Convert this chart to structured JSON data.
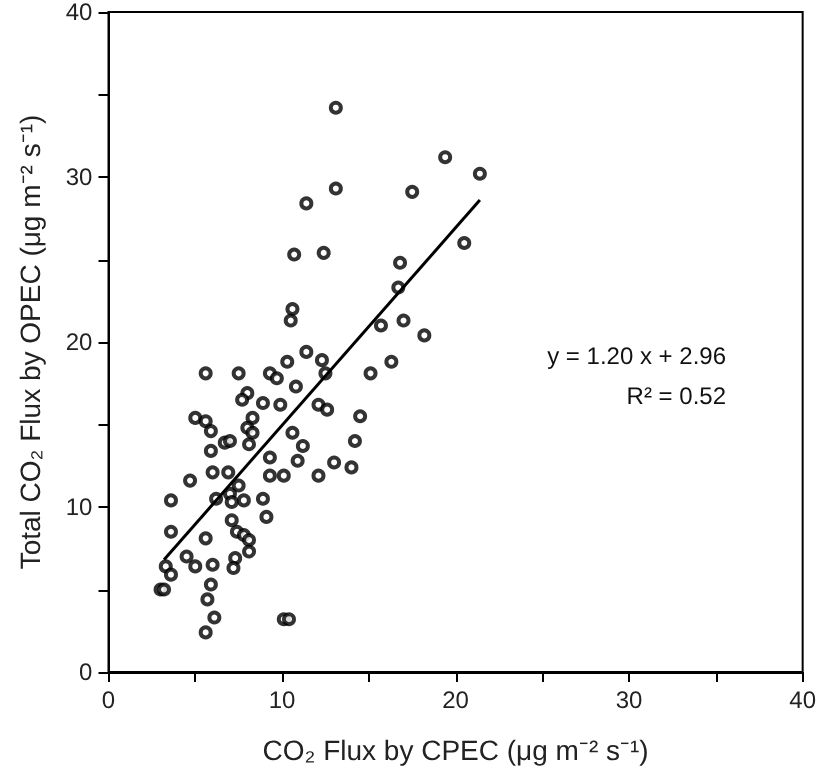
{
  "chart_data": {
    "type": "scatter",
    "xlabel": "CO₂ Flux by CPEC (μg m⁻² s⁻¹)",
    "ylabel": "Total CO₂ Flux by OPEC (μg m⁻² s⁻¹)",
    "xlim": [
      0,
      40
    ],
    "xticks": [
      0,
      {
        "value": 5,
        "label": null
      },
      10,
      {
        "value": 15,
        "label": null
      },
      20,
      {
        "value": 25,
        "label": null
      },
      30,
      {
        "value": 35,
        "label": null
      },
      40
    ],
    "ylim": [
      0,
      40
    ],
    "yticks": [
      0,
      {
        "value": 5,
        "label": null
      },
      10,
      {
        "value": 15,
        "label": null
      },
      20,
      {
        "value": 25,
        "label": null
      },
      30,
      {
        "value": 35,
        "label": null
      },
      40
    ],
    "grid": false,
    "marker": "circle",
    "annotations": [
      "y = 1.20 x + 2.96",
      "R² = 0.52"
    ],
    "series": [
      {
        "color": "#000000",
        "x": [
          13.1,
          19.4,
          21.4,
          11.4,
          13.1,
          17.5,
          20.5,
          10.7,
          12.4,
          16.8,
          16.7,
          10.6,
          10.5,
          15.7,
          17.0,
          18.2,
          11.4,
          10.3,
          12.3,
          16.3,
          5.6,
          7.5,
          9.3,
          12.5,
          15.1,
          9.7,
          10.8,
          8.0,
          7.7,
          8.9,
          9.9,
          12.1,
          12.6,
          5.0,
          5.6,
          8.3,
          14.5,
          5.9,
          8.0,
          8.3,
          10.6,
          6.7,
          7.0,
          8.1,
          11.2,
          14.2,
          5.9,
          9.3,
          10.9,
          13.0,
          14.0,
          6.0,
          6.9,
          9.3,
          10.1,
          12.1,
          4.7,
          7.5,
          6.2,
          7.0,
          7.8,
          7.1,
          3.6,
          8.9,
          9.1,
          7.1,
          7.4,
          7.8,
          3.6,
          5.6,
          8.1,
          8.1,
          4.5,
          5.0,
          6.0,
          7.3,
          7.2,
          3.3,
          3.6,
          5.9,
          3.0,
          3.2,
          5.7,
          6.1,
          5.6,
          10.1,
          10.4
        ],
        "values": [
          34.2,
          31.2,
          30.2,
          28.4,
          29.3,
          29.1,
          26.0,
          25.3,
          25.4,
          24.8,
          23.3,
          22.0,
          21.3,
          21.0,
          21.3,
          20.4,
          19.4,
          18.8,
          18.9,
          18.8,
          18.1,
          18.1,
          18.1,
          18.1,
          18.1,
          17.8,
          17.3,
          16.9,
          16.5,
          16.3,
          16.2,
          16.2,
          15.9,
          15.4,
          15.2,
          15.4,
          15.5,
          14.6,
          14.8,
          14.5,
          14.5,
          13.9,
          14.0,
          13.8,
          13.7,
          14.0,
          13.4,
          13.0,
          12.8,
          12.7,
          12.4,
          12.1,
          12.1,
          11.9,
          11.9,
          11.9,
          11.6,
          11.3,
          10.5,
          10.8,
          10.4,
          10.3,
          10.4,
          10.5,
          9.4,
          9.2,
          8.5,
          8.3,
          8.5,
          8.1,
          8.0,
          7.3,
          7.0,
          6.4,
          6.5,
          6.9,
          6.3,
          6.4,
          5.9,
          5.3,
          5.0,
          5.0,
          4.4,
          3.3,
          2.4,
          3.2,
          3.2
        ]
      },
      {
        "type": "line",
        "color": "#000000",
        "marker": "none",
        "x": [
          3.2,
          21.4
        ],
        "values": [
          6.8,
          28.6
        ]
      }
    ]
  }
}
